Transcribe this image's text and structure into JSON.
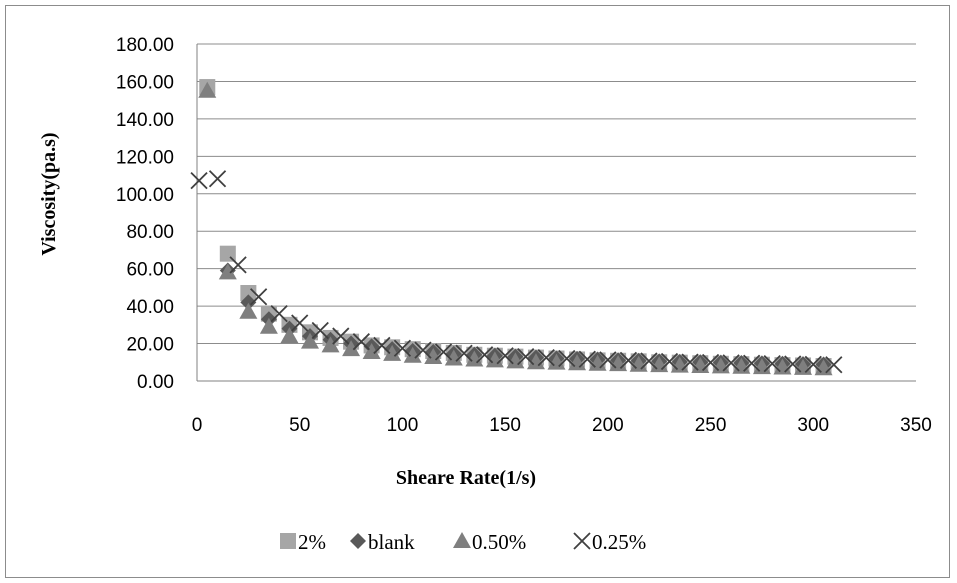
{
  "chart_data": {
    "type": "scatter",
    "title": "",
    "xlabel": "Sheare Rate(1/s)",
    "ylabel": "Viscosity(pa.s)",
    "xlim": [
      0,
      350
    ],
    "ylim": [
      0,
      180
    ],
    "xticks": [
      0,
      50,
      100,
      150,
      200,
      250,
      300,
      350
    ],
    "yticks": [
      0,
      20,
      40,
      60,
      80,
      100,
      120,
      140,
      160,
      180
    ],
    "xtick_labels": [
      "0",
      "50",
      "100",
      "150",
      "200",
      "250",
      "300",
      "350"
    ],
    "ytick_labels": [
      "0.00",
      "20.00",
      "40.00",
      "60.00",
      "80.00",
      "100.00",
      "120.00",
      "140.00",
      "160.00",
      "180.00"
    ],
    "grid": "horizontal",
    "legend_position": "bottom",
    "series": [
      {
        "name": "2%",
        "marker": "square",
        "color": "#a6a6a6",
        "x": [
          5,
          15,
          25,
          35,
          45,
          55,
          65,
          75,
          85,
          95,
          105,
          115,
          125,
          135,
          145,
          155,
          165,
          175,
          185,
          195,
          205,
          215,
          225,
          235,
          245,
          255,
          265,
          275,
          285,
          295,
          305
        ],
        "y": [
          157,
          68,
          47,
          36,
          30,
          26,
          23,
          21,
          19,
          18,
          17,
          16,
          15,
          14,
          13.5,
          13,
          12.5,
          12,
          11.5,
          11,
          10.8,
          10.5,
          10,
          9.8,
          9.5,
          9.2,
          9,
          8.7,
          8.5,
          8.3,
          8
        ]
      },
      {
        "name": "blank",
        "marker": "diamond",
        "color": "#595959",
        "x": [
          15,
          25,
          35,
          45,
          55,
          65,
          75,
          85,
          95,
          105,
          115,
          125,
          135,
          145,
          155,
          165,
          175,
          185,
          195,
          205,
          215,
          225,
          235,
          245,
          255,
          265,
          275,
          285,
          295,
          305
        ],
        "y": [
          59,
          42,
          33,
          28,
          24,
          22,
          20,
          18.5,
          17,
          16,
          15.5,
          14.5,
          14,
          13.5,
          13,
          12.5,
          12,
          11.8,
          11.5,
          11,
          10.8,
          10.5,
          10.2,
          10,
          9.8,
          9.6,
          9.4,
          9.2,
          9,
          8.8
        ]
      },
      {
        "name": "0.50%",
        "marker": "triangle",
        "color": "#7f7f7f",
        "x": [
          5,
          15,
          25,
          35,
          45,
          55,
          65,
          75,
          85,
          95,
          105,
          115,
          125,
          135,
          145,
          155,
          165,
          175,
          185,
          195,
          205,
          215,
          225,
          235,
          245,
          255,
          265,
          275,
          285,
          295,
          305
        ],
        "y": [
          155,
          58,
          37,
          29,
          24,
          21,
          19,
          17,
          15.5,
          14.5,
          13.5,
          12.8,
          12,
          11.5,
          11,
          10.5,
          10,
          9.8,
          9.5,
          9.2,
          9,
          8.7,
          8.5,
          8.2,
          8,
          7.8,
          7.6,
          7.4,
          7.2,
          7,
          6.8
        ]
      },
      {
        "name": "0.25%",
        "marker": "x",
        "color": "#404040",
        "x": [
          1,
          10,
          20,
          30,
          40,
          50,
          60,
          70,
          80,
          90,
          100,
          110,
          120,
          130,
          140,
          150,
          160,
          170,
          180,
          190,
          200,
          210,
          220,
          230,
          240,
          250,
          260,
          270,
          280,
          290,
          300,
          310
        ],
        "y": [
          107,
          108,
          62,
          45,
          36,
          31,
          27,
          24,
          21,
          19,
          17.5,
          16.5,
          15.5,
          14.8,
          14,
          13.5,
          13,
          12.5,
          12,
          11.6,
          11.3,
          11,
          10.7,
          10.4,
          10.1,
          9.9,
          9.7,
          9.5,
          9.3,
          9.1,
          8.9,
          8.7
        ]
      }
    ]
  }
}
